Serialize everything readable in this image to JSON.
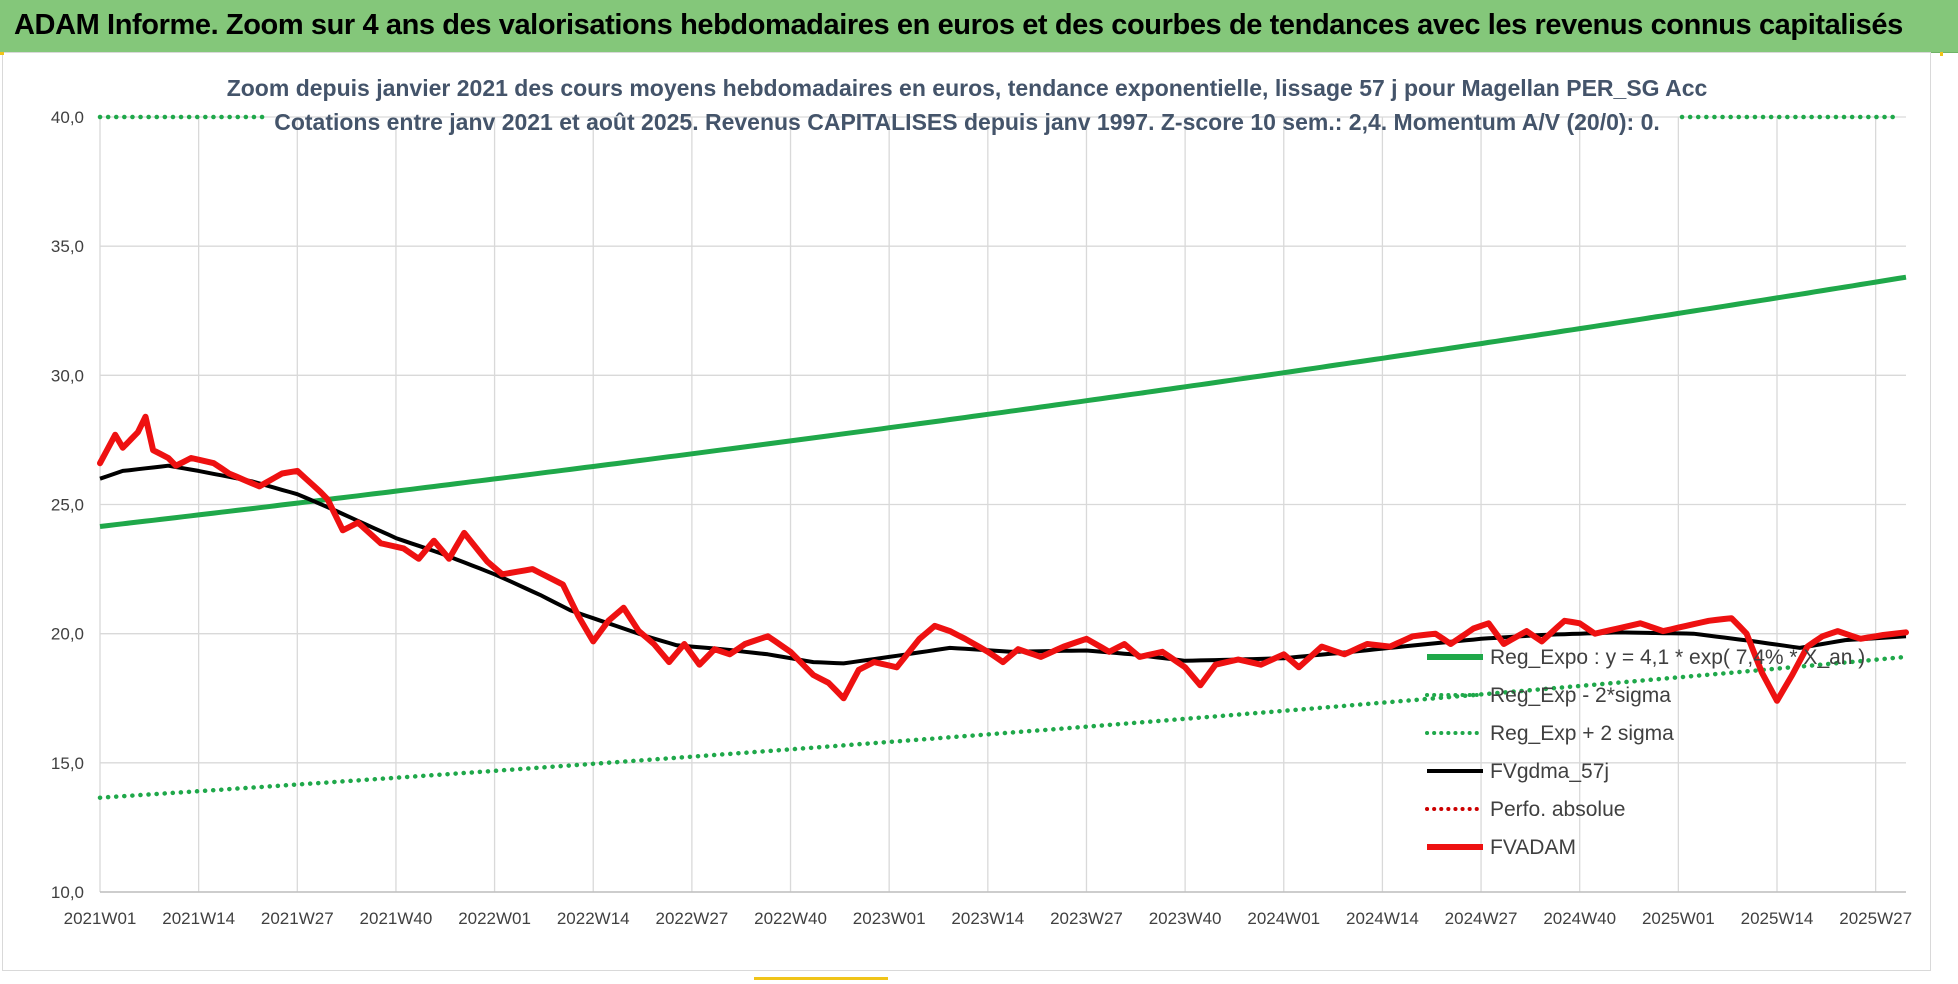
{
  "banner": {
    "title": "ADAM Informe. Zoom sur 4 ans des valorisations hebdomadaires en euros et des courbes de tendances avec les revenus connus capitalisés"
  },
  "colors": {
    "banner_bg": "#84c77a",
    "green_trend": "#1fa84a",
    "green_dotted": "#1fa84a",
    "smooth": "#000000",
    "price": "#ee1111",
    "perfo": "#cc0000",
    "grid": "#d9d9d9",
    "subtitle_text": "#44546a"
  },
  "chart_data": {
    "type": "line",
    "title_lines": [
      "Zoom depuis janvier 2021 des cours moyens hebdomadaires en euros, tendance exponentielle, lissage 57 j pour Magellan PER_SG Acc",
      "Cotations entre janv 2021 et août 2025.  Revenus CAPITALISES depuis janv 1997. Z-score 10 sem.: 2,4. Momentum A/V (20/0): 0."
    ],
    "ylim": [
      10,
      40
    ],
    "yticks": [
      "10,0",
      "15,0",
      "20,0",
      "25,0",
      "30,0",
      "35,0",
      "40,0"
    ],
    "ytick_values": [
      10,
      15,
      20,
      25,
      30,
      35,
      40
    ],
    "xtick_labels": [
      "2021W01",
      "2021W14",
      "2021W27",
      "2021W40",
      "2022W01",
      "2022W14",
      "2022W27",
      "2022W40",
      "2023W01",
      "2023W14",
      "2023W27",
      "2023W40",
      "2024W01",
      "2024W14",
      "2024W27",
      "2024W40",
      "2025W01",
      "2025W14",
      "2025W27"
    ],
    "xtick_index": [
      0,
      13,
      26,
      39,
      52,
      65,
      78,
      91,
      104,
      117,
      130,
      143,
      156,
      169,
      182,
      195,
      208,
      221,
      234
    ],
    "x_count": 239,
    "grid": true,
    "legend_position": "right",
    "legend": [
      {
        "label": "Reg_Expo : y = 4,1 * exp( 7,4% * X_an )",
        "style": "solid-thick",
        "color": "#1fa84a"
      },
      {
        "label": "Reg_Exp - 2*sigma",
        "style": "dotted",
        "color": "#1fa84a"
      },
      {
        "label": "Reg_Exp + 2 sigma",
        "style": "dotted",
        "color": "#1fa84a"
      },
      {
        "label": "FVgdma_57j",
        "style": "solid",
        "color": "#000000"
      },
      {
        "label": "Perfo. absolue",
        "style": "dotted",
        "color": "#cc0000"
      },
      {
        "label": "FVADAM",
        "style": "solid-thick",
        "color": "#ee1111"
      }
    ],
    "series": [
      {
        "name": "Reg_Expo : y = 4,1 * exp( 7,4% * X_an )",
        "kind": "exp",
        "start": 24.15,
        "end": 33.8
      },
      {
        "name": "Reg_Exp - 2*sigma",
        "kind": "exp",
        "start": 13.65,
        "end": 19.1
      },
      {
        "name": "Reg_Exp + 2 sigma",
        "kind": "exp",
        "start": 40.0,
        "end": 40.0
      },
      {
        "name": "FVgdma_57j",
        "kind": "keys",
        "keys": [
          [
            0,
            26.0
          ],
          [
            3,
            26.3
          ],
          [
            6,
            26.4
          ],
          [
            9,
            26.5
          ],
          [
            13,
            26.3
          ],
          [
            20,
            25.9
          ],
          [
            26,
            25.4
          ],
          [
            30,
            24.9
          ],
          [
            39,
            23.7
          ],
          [
            45,
            23.1
          ],
          [
            52,
            22.3
          ],
          [
            58,
            21.5
          ],
          [
            62,
            20.9
          ],
          [
            66,
            20.5
          ],
          [
            72,
            19.9
          ],
          [
            76,
            19.55
          ],
          [
            82,
            19.4
          ],
          [
            88,
            19.2
          ],
          [
            94,
            18.9
          ],
          [
            98,
            18.85
          ],
          [
            104,
            19.1
          ],
          [
            112,
            19.45
          ],
          [
            120,
            19.3
          ],
          [
            130,
            19.35
          ],
          [
            136,
            19.2
          ],
          [
            143,
            18.95
          ],
          [
            150,
            19.0
          ],
          [
            156,
            19.05
          ],
          [
            165,
            19.3
          ],
          [
            175,
            19.6
          ],
          [
            182,
            19.8
          ],
          [
            190,
            19.95
          ],
          [
            200,
            20.05
          ],
          [
            210,
            20.0
          ],
          [
            218,
            19.7
          ],
          [
            224,
            19.45
          ],
          [
            230,
            19.75
          ],
          [
            238,
            19.9
          ]
        ]
      },
      {
        "name": "FVADAM",
        "kind": "keys",
        "keys": [
          [
            0,
            26.6
          ],
          [
            2,
            27.7
          ],
          [
            3,
            27.2
          ],
          [
            5,
            27.8
          ],
          [
            6,
            28.4
          ],
          [
            7,
            27.1
          ],
          [
            9,
            26.8
          ],
          [
            10,
            26.5
          ],
          [
            12,
            26.8
          ],
          [
            15,
            26.6
          ],
          [
            17,
            26.2
          ],
          [
            21,
            25.7
          ],
          [
            24,
            26.2
          ],
          [
            26,
            26.3
          ],
          [
            29,
            25.5
          ],
          [
            30,
            25.2
          ],
          [
            32,
            24.0
          ],
          [
            34,
            24.3
          ],
          [
            37,
            23.5
          ],
          [
            40,
            23.3
          ],
          [
            42,
            22.9
          ],
          [
            44,
            23.6
          ],
          [
            46,
            22.9
          ],
          [
            48,
            23.9
          ],
          [
            51,
            22.8
          ],
          [
            53,
            22.3
          ],
          [
            57,
            22.5
          ],
          [
            61,
            21.9
          ],
          [
            63,
            20.7
          ],
          [
            65,
            19.7
          ],
          [
            67,
            20.5
          ],
          [
            69,
            21.0
          ],
          [
            71,
            20.1
          ],
          [
            73,
            19.6
          ],
          [
            75,
            18.9
          ],
          [
            77,
            19.6
          ],
          [
            79,
            18.8
          ],
          [
            81,
            19.4
          ],
          [
            83,
            19.2
          ],
          [
            85,
            19.6
          ],
          [
            88,
            19.9
          ],
          [
            91,
            19.3
          ],
          [
            94,
            18.4
          ],
          [
            96,
            18.1
          ],
          [
            98,
            17.5
          ],
          [
            100,
            18.6
          ],
          [
            102,
            18.9
          ],
          [
            105,
            18.7
          ],
          [
            108,
            19.8
          ],
          [
            110,
            20.3
          ],
          [
            112,
            20.1
          ],
          [
            114,
            19.8
          ],
          [
            117,
            19.3
          ],
          [
            119,
            18.9
          ],
          [
            121,
            19.4
          ],
          [
            124,
            19.1
          ],
          [
            127,
            19.5
          ],
          [
            130,
            19.8
          ],
          [
            133,
            19.3
          ],
          [
            135,
            19.6
          ],
          [
            137,
            19.1
          ],
          [
            140,
            19.3
          ],
          [
            143,
            18.7
          ],
          [
            145,
            18.0
          ],
          [
            147,
            18.8
          ],
          [
            150,
            19.0
          ],
          [
            153,
            18.8
          ],
          [
            156,
            19.2
          ],
          [
            158,
            18.7
          ],
          [
            161,
            19.5
          ],
          [
            164,
            19.2
          ],
          [
            167,
            19.6
          ],
          [
            170,
            19.5
          ],
          [
            173,
            19.9
          ],
          [
            176,
            20.0
          ],
          [
            178,
            19.6
          ],
          [
            181,
            20.2
          ],
          [
            183,
            20.4
          ],
          [
            185,
            19.6
          ],
          [
            188,
            20.1
          ],
          [
            190,
            19.7
          ],
          [
            193,
            20.5
          ],
          [
            195,
            20.4
          ],
          [
            197,
            20.0
          ],
          [
            200,
            20.2
          ],
          [
            203,
            20.4
          ],
          [
            206,
            20.1
          ],
          [
            209,
            20.3
          ],
          [
            212,
            20.5
          ],
          [
            215,
            20.6
          ],
          [
            217,
            20.0
          ],
          [
            219,
            18.5
          ],
          [
            221,
            17.4
          ],
          [
            223,
            18.4
          ],
          [
            225,
            19.5
          ],
          [
            227,
            19.9
          ],
          [
            229,
            20.1
          ],
          [
            232,
            19.8
          ],
          [
            235,
            19.95
          ],
          [
            238,
            20.05
          ]
        ]
      }
    ]
  }
}
